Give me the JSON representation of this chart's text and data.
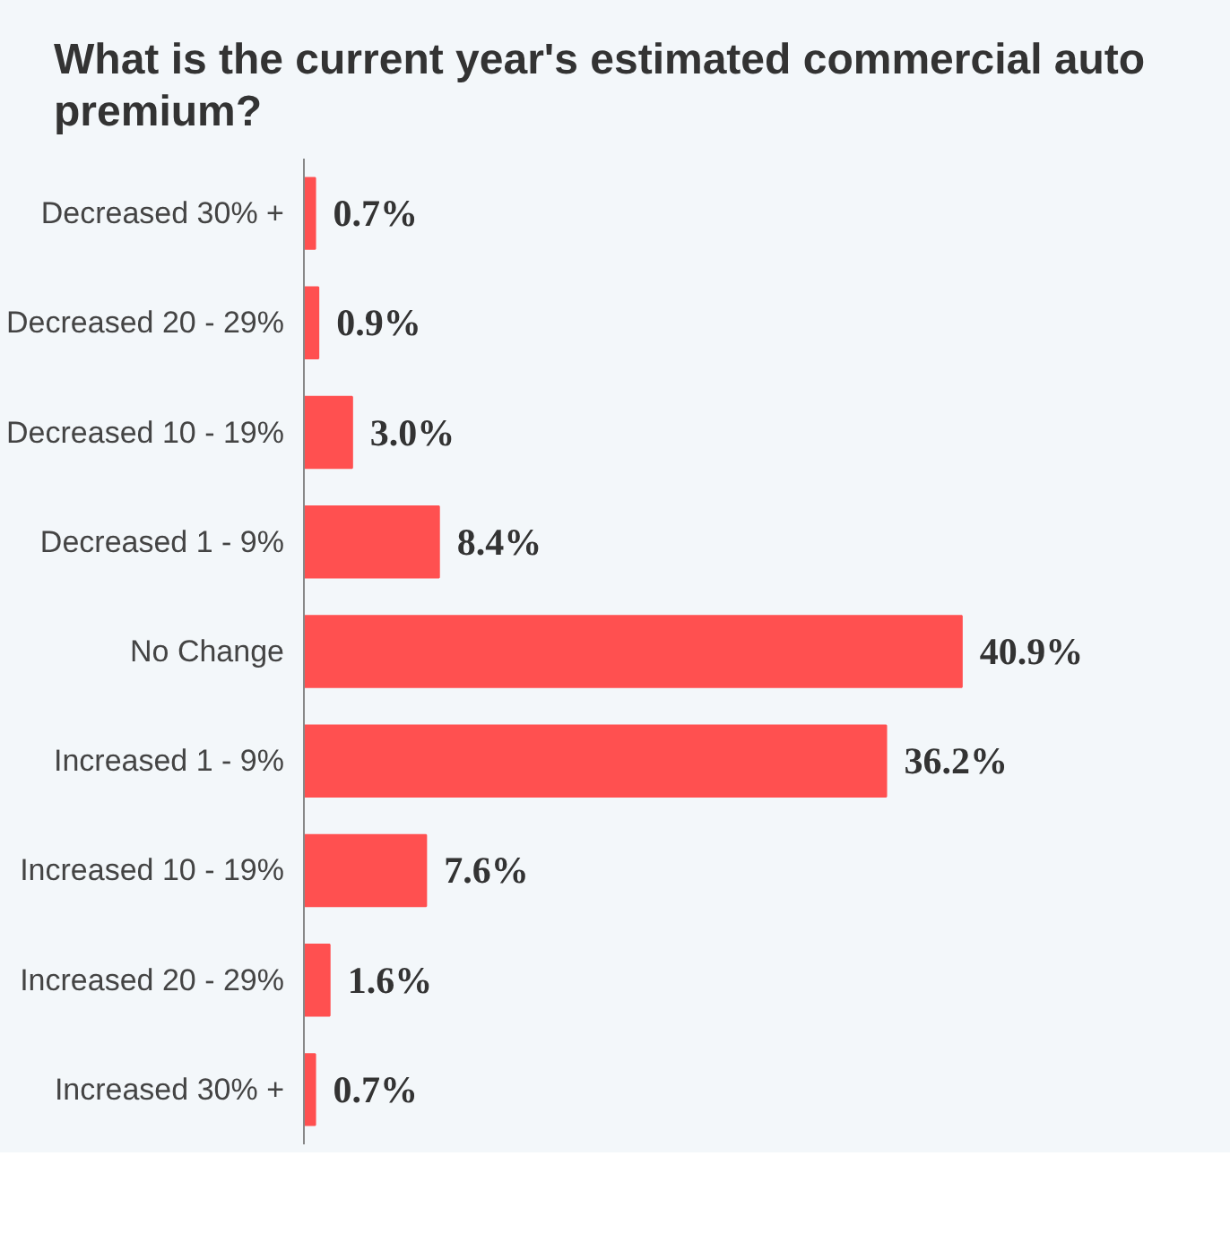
{
  "chart_data": {
    "type": "bar",
    "orientation": "horizontal",
    "title": "What is the current year's estimated commercial auto premium?",
    "categories": [
      "Decreased 30% +",
      "Decreased 20 - 29%",
      "Decreased 10 - 19%",
      "Decreased 1 - 9%",
      "No Change",
      "Increased 1 - 9%",
      "Increased 10 - 19%",
      "Increased 20 - 29%",
      "Increased 30% +"
    ],
    "values": [
      0.7,
      0.9,
      3.0,
      8.4,
      40.9,
      36.2,
      7.6,
      1.6,
      0.7
    ],
    "value_labels": [
      "0.7%",
      "0.9%",
      "3.0%",
      "8.4%",
      "40.9%",
      "36.2%",
      "7.6%",
      "1.6%",
      "0.7%"
    ],
    "color": "#ff5050",
    "grid": false
  }
}
